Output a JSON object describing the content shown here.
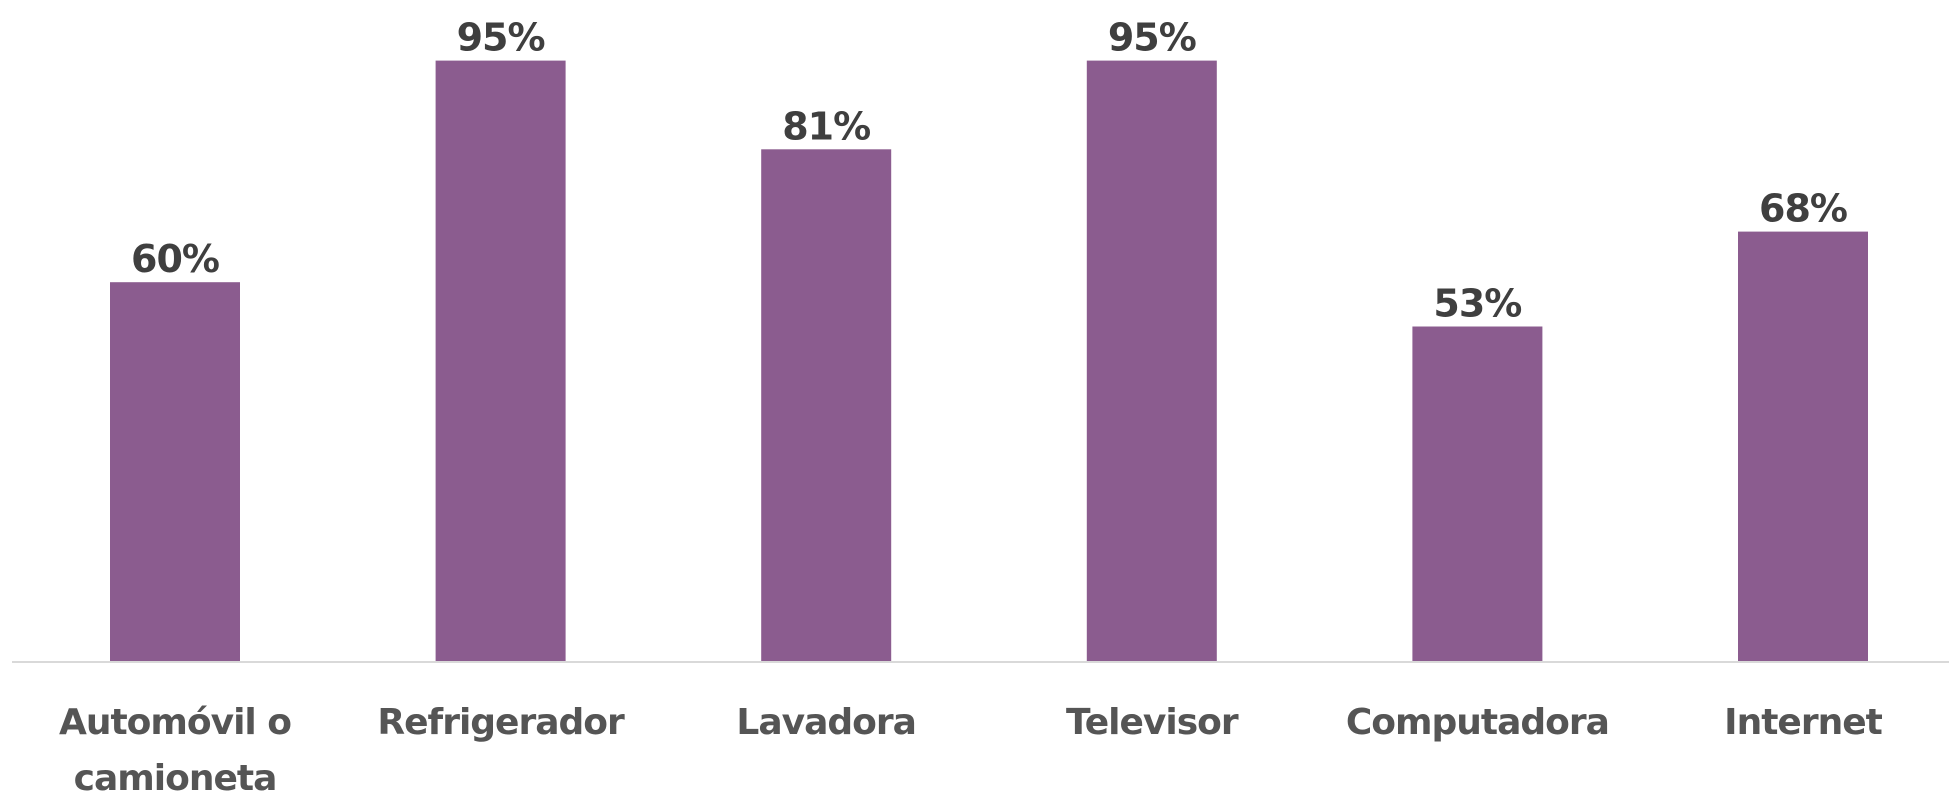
{
  "chart_data": {
    "type": "bar",
    "categories": [
      "Automóvil o camioneta",
      "Refrigerador",
      "Lavadora",
      "Televisor",
      "Computadora",
      "Internet"
    ],
    "category_lines": [
      [
        "Automóvil o",
        "camioneta"
      ],
      [
        "Refrigerador"
      ],
      [
        "Lavadora"
      ],
      [
        "Televisor"
      ],
      [
        "Computadora"
      ],
      [
        "Internet"
      ]
    ],
    "values": [
      60,
      95,
      81,
      95,
      53,
      68
    ],
    "data_labels": [
      "60%",
      "95%",
      "81%",
      "95%",
      "53%",
      "68%"
    ],
    "value_unit": "%",
    "title": "",
    "xlabel": "",
    "ylabel": "",
    "ylim": [
      0,
      100
    ],
    "grid": false,
    "legend": "none",
    "bar_color": "#8b5c8f",
    "axis_color": "#d9d9d9",
    "label_color": "#3f3f3f",
    "category_color": "#555555"
  }
}
